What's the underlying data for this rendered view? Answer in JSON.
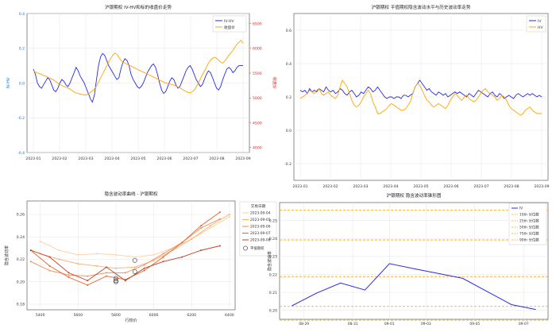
{
  "colors": {
    "blue": "#2a2ae8",
    "orange": "#ffa500",
    "red_axis": "#d62728",
    "grid": "#e6e6e6",
    "frame": "#444444",
    "ref_line": "#ffa500"
  },
  "chart_data": [
    {
      "id": "tl",
      "type": "line",
      "title": "沪银期权 IV-HV和标的收盘价走势",
      "ylabel": "IV-HV",
      "ylabel_right": "收盘价",
      "ylim": [
        -0.4,
        0.4
      ],
      "ylim_right": [
        3900,
        6700
      ],
      "yticks": [
        "-0.4",
        "-0.2",
        "0.0",
        "0.2",
        "0.4"
      ],
      "yticks_right": [
        "4000",
        "4500",
        "5000",
        "5500",
        "6000",
        "6500"
      ],
      "xticks": [
        "2023-01",
        "2023-02",
        "2023-03",
        "2023-04",
        "2023-05",
        "2023-06",
        "2023-07",
        "2023-08",
        "2023-09"
      ],
      "grid": true,
      "legend_placement": "top-right",
      "series": [
        {
          "name": "IV-HV",
          "color": "blue",
          "axis": "left",
          "values": [
            0.08,
            0.05,
            0.0,
            -0.02,
            -0.03,
            -0.01,
            0.01,
            0.03,
            0.02,
            -0.01,
            -0.04,
            -0.05,
            -0.03,
            0.0,
            0.02,
            0.01,
            -0.01,
            -0.02,
            0.0,
            0.03,
            0.06,
            0.09,
            0.07,
            0.04,
            0.02,
            0.0,
            -0.03,
            -0.06,
            -0.09,
            -0.11,
            -0.07,
            0.02,
            0.1,
            0.15,
            0.17,
            0.16,
            0.13,
            0.1,
            0.08,
            0.06,
            0.04,
            0.02,
            0.03,
            0.08,
            0.12,
            0.14,
            0.13,
            0.1,
            0.05,
            0.02,
            0.0,
            -0.02,
            -0.03,
            -0.02,
            0.0,
            0.03,
            0.06,
            0.08,
            0.1,
            0.11,
            0.09,
            0.05,
            0.0,
            -0.04,
            -0.06,
            -0.05,
            -0.02,
            0.01,
            0.03,
            0.02,
            -0.01,
            -0.03,
            -0.02,
            0.01,
            0.04,
            0.07,
            0.09,
            0.1,
            0.08,
            0.05,
            0.02,
            0.0,
            -0.02,
            -0.01,
            0.02,
            0.05,
            0.07,
            0.06,
            0.03,
            0.0,
            -0.03,
            -0.04,
            -0.02,
            0.02,
            0.05,
            0.08,
            0.09,
            0.08,
            0.06,
            0.07,
            0.09,
            0.1,
            0.1,
            0.1
          ]
        },
        {
          "name": "收盘价",
          "color": "orange",
          "axis": "right",
          "values": [
            5550,
            5520,
            5500,
            5490,
            5470,
            5450,
            5440,
            5420,
            5400,
            5380,
            5360,
            5330,
            5300,
            5270,
            5250,
            5230,
            5220,
            5200,
            5180,
            5150,
            5120,
            5100,
            5090,
            5080,
            5070,
            5060,
            5060,
            5080,
            5110,
            5140,
            5180,
            5240,
            5320,
            5400,
            5480,
            5560,
            5640,
            5720,
            5800,
            5860,
            5900,
            5880,
            5820,
            5760,
            5720,
            5700,
            5680,
            5660,
            5640,
            5620,
            5600,
            5580,
            5560,
            5540,
            5520,
            5500,
            5480,
            5460,
            5440,
            5420,
            5400,
            5380,
            5360,
            5340,
            5320,
            5300,
            5290,
            5280,
            5270,
            5260,
            5240,
            5220,
            5200,
            5180,
            5150,
            5130,
            5110,
            5100,
            5120,
            5160,
            5220,
            5300,
            5380,
            5460,
            5540,
            5620,
            5700,
            5760,
            5800,
            5820,
            5800,
            5760,
            5720,
            5700,
            5740,
            5800,
            5860,
            5900,
            5960,
            6020,
            6080,
            6120,
            6160,
            6100
          ]
        }
      ]
    },
    {
      "id": "tr",
      "type": "line",
      "title": "沪银期权 平值期权隐含波动水平与历史波动率走势",
      "ylim": [
        -0.3,
        0.7
      ],
      "yticks": [
        "-0.2",
        "0.0",
        "0.2",
        "0.4",
        "0.6"
      ],
      "xticks": [
        "2023-01",
        "2023-02",
        "2023-03",
        "2023-04",
        "2023-05",
        "2023-06",
        "2023-07",
        "2023-08",
        "2023-09"
      ],
      "grid": true,
      "legend_placement": "top-right",
      "series": [
        {
          "name": "IV",
          "color": "blue",
          "values": [
            0.24,
            0.23,
            0.24,
            0.22,
            0.25,
            0.23,
            0.24,
            0.23,
            0.25,
            0.24,
            0.23,
            0.26,
            0.24,
            0.23,
            0.24,
            0.22,
            0.23,
            0.25,
            0.24,
            0.22,
            0.21,
            0.23,
            0.24,
            0.22,
            0.2,
            0.21,
            0.23,
            0.22,
            0.24,
            0.26,
            0.25,
            0.23,
            0.24,
            0.26,
            0.24,
            0.22,
            0.2,
            0.19,
            0.2,
            0.2,
            0.19,
            0.2,
            0.2,
            0.19,
            0.21,
            0.21,
            0.2,
            0.21,
            0.22,
            0.26,
            0.28,
            0.3,
            0.28,
            0.26,
            0.24,
            0.25,
            0.23,
            0.22,
            0.21,
            0.23,
            0.22,
            0.21,
            0.22,
            0.2,
            0.21,
            0.22,
            0.23,
            0.22,
            0.23,
            0.22,
            0.21,
            0.2,
            0.22,
            0.21,
            0.2,
            0.22,
            0.24,
            0.23,
            0.22,
            0.21,
            0.2,
            0.22,
            0.23,
            0.21,
            0.2,
            0.22,
            0.21,
            0.19,
            0.2,
            0.21,
            0.2,
            0.19,
            0.21,
            0.22,
            0.21,
            0.2,
            0.21,
            0.22,
            0.21,
            0.22,
            0.21,
            0.2,
            0.21,
            0.2
          ]
        },
        {
          "name": "HV",
          "color": "orange",
          "values": [
            0.19,
            0.2,
            0.21,
            0.22,
            0.24,
            0.23,
            0.22,
            0.24,
            0.25,
            0.22,
            0.21,
            0.22,
            0.23,
            0.21,
            0.2,
            0.19,
            0.21,
            0.26,
            0.3,
            0.28,
            0.26,
            0.22,
            0.18,
            0.15,
            0.14,
            0.15,
            0.17,
            0.2,
            0.22,
            0.24,
            0.22,
            0.17,
            0.14,
            0.1,
            0.1,
            0.11,
            0.12,
            0.13,
            0.15,
            0.16,
            0.15,
            0.14,
            0.13,
            0.12,
            0.12,
            0.13,
            0.15,
            0.17,
            0.22,
            0.26,
            0.28,
            0.27,
            0.24,
            0.21,
            0.18,
            0.17,
            0.15,
            0.14,
            0.15,
            0.16,
            0.15,
            0.14,
            0.13,
            0.15,
            0.18,
            0.2,
            0.22,
            0.21,
            0.19,
            0.18,
            0.2,
            0.21,
            0.19,
            0.18,
            0.17,
            0.18,
            0.2,
            0.22,
            0.24,
            0.25,
            0.23,
            0.22,
            0.21,
            0.2,
            0.18,
            0.19,
            0.21,
            0.2,
            0.18,
            0.15,
            0.13,
            0.12,
            0.11,
            0.1,
            0.09,
            0.1,
            0.12,
            0.13,
            0.14,
            0.12,
            0.11,
            0.1,
            0.1,
            0.1
          ]
        }
      ]
    },
    {
      "id": "bl",
      "type": "line",
      "title": "隐含波动率曲线 - 沪银期权",
      "xlabel": "行权价",
      "ylabel": "隐含波动率",
      "xlim": [
        5330,
        6430
      ],
      "ylim": [
        0.175,
        0.272
      ],
      "xticks": [
        5400,
        5600,
        5800,
        6000,
        6200,
        6400
      ],
      "yticks": [
        "0.18",
        "0.20",
        "0.22",
        "0.24",
        "0.26"
      ],
      "yticks_values": [
        0.18,
        0.2,
        0.22,
        0.24,
        0.26
      ],
      "grid": true,
      "legend_title": "交易日期",
      "legend_placement": "right",
      "atm_label": "平值期权",
      "series": [
        {
          "name": "2023-09-04",
          "color": "#fdd0a2",
          "x": [
            5400,
            5500,
            5600,
            5700,
            5800,
            5900,
            6000,
            6100,
            6200,
            6300,
            6400
          ],
          "values": [
            0.236,
            0.228,
            0.224,
            0.225,
            0.224,
            0.222,
            0.224,
            0.23,
            0.238,
            0.248,
            0.258
          ]
        },
        {
          "name": "2023-09-05",
          "color": "#fdae6b",
          "x": [
            5400,
            5500,
            5600,
            5700,
            5800,
            5900,
            6000,
            6100,
            6200,
            6300,
            6400
          ],
          "values": [
            0.225,
            0.22,
            0.216,
            0.214,
            0.212,
            0.213,
            0.219,
            0.228,
            0.238,
            0.25,
            0.26
          ]
        },
        {
          "name": "2023-09-06",
          "color": "#f88a4f",
          "x": [
            5350,
            5450,
            5550,
            5650,
            5750,
            5850,
            5950,
            6050,
            6150,
            6250,
            6350
          ],
          "values": [
            0.218,
            0.21,
            0.206,
            0.205,
            0.208,
            0.208,
            0.215,
            0.225,
            0.235,
            0.248,
            0.256
          ]
        },
        {
          "name": "2023-09-07",
          "color": "#e8622c",
          "x": [
            5350,
            5450,
            5550,
            5650,
            5750,
            5850,
            5950,
            6050,
            6150,
            6250,
            6350
          ],
          "values": [
            0.228,
            0.214,
            0.204,
            0.197,
            0.205,
            0.202,
            0.21,
            0.222,
            0.235,
            0.25,
            0.262
          ]
        },
        {
          "name": "2023-09-08",
          "color": "#c0432a",
          "x": [
            5350,
            5450,
            5550,
            5650,
            5750,
            5850,
            5950,
            6050,
            6150,
            6250,
            6350
          ],
          "values": [
            0.228,
            0.222,
            0.208,
            0.201,
            0.213,
            0.201,
            0.212,
            0.218,
            0.222,
            0.228,
            0.232
          ]
        }
      ],
      "atm_points": [
        [
          5900,
          0.219
        ],
        [
          5900,
          0.209
        ],
        [
          5800,
          0.201
        ],
        [
          5800,
          0.2
        ],
        [
          5800,
          0.203
        ]
      ]
    },
    {
      "id": "br",
      "type": "line",
      "title": "沪银期权 隐含波动率锥形图",
      "ylabel": "隐含波动率",
      "ylim": [
        0.195,
        0.26
      ],
      "yticks": [
        "0.20",
        "0.21",
        "0.22",
        "0.23",
        "0.24",
        "0.25"
      ],
      "yticks_values": [
        0.2,
        0.21,
        0.22,
        0.23,
        0.24,
        0.25
      ],
      "xticks": [
        "08-29",
        "08-31",
        "09-01",
        "09-03",
        "09-05",
        "09-07"
      ],
      "grid": true,
      "legend_placement": "top-right",
      "series": [
        {
          "name": "IV",
          "color": "blue",
          "x": [
            0,
            1,
            2,
            3,
            4,
            5,
            6,
            7,
            8,
            9,
            10
          ],
          "values": [
            0.2025,
            0.2095,
            0.2152,
            0.2113,
            0.226,
            0.2232,
            0.2205,
            0.2178,
            0.2105,
            0.2032,
            0.2005
          ]
        }
      ],
      "ref_lines": [
        {
          "name": "10th 分位数",
          "value": 0.1945
        },
        {
          "name": "25th 分位数",
          "value": 0.2022
        },
        {
          "name": "50th 分位数",
          "value": 0.2188
        },
        {
          "name": "75th 分位数",
          "value": 0.2392
        },
        {
          "name": "90th 分位数",
          "value": 0.2558
        }
      ]
    }
  ]
}
